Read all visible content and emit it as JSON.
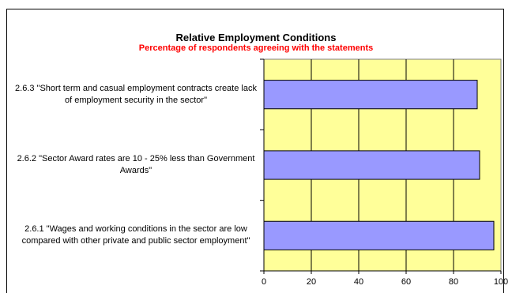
{
  "chart_data": {
    "type": "bar",
    "orientation": "horizontal",
    "title": "Relative Employment Conditions",
    "subtitle": "Percentage of respondents agreeing with the statements",
    "categories": [
      "2.6.3  \"Short term and casual employment contracts create lack of employment security in the sector\"",
      "2.6.2 \"Sector Award rates are 10 - 25% less than Government Awards\"",
      "2.6.1 \"Wages and working conditions in the sector are low compared with other private and public sector employment\""
    ],
    "values": [
      90,
      91,
      97
    ],
    "xlim": [
      0,
      100
    ],
    "xticks": [
      "0",
      "20",
      "40",
      "60",
      "80",
      "100"
    ],
    "grid": true,
    "colors": {
      "bar": "#9999ff",
      "plot_background": "#ffff99",
      "subtitle": "#ff0000"
    }
  }
}
